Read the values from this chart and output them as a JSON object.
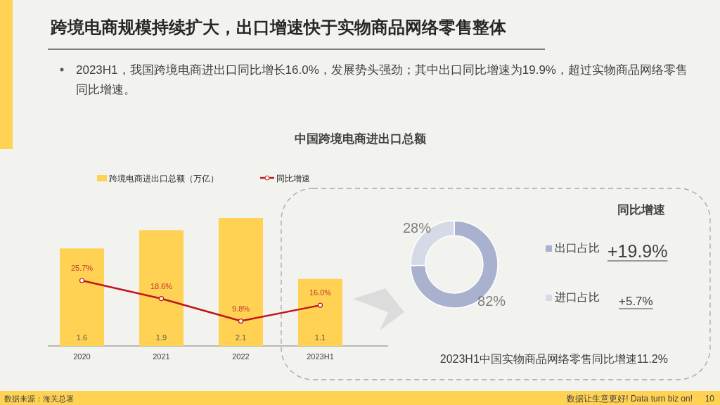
{
  "chart_data": [
    {
      "type": "bar",
      "title": "中国跨境电商进出口总额",
      "categories": [
        "2020",
        "2021",
        "2022",
        "2023H1"
      ],
      "series": [
        {
          "name": "跨境电商进出口总额（万亿）",
          "type": "bar",
          "color": "#ffd254",
          "values": [
            1.6,
            1.9,
            2.1,
            1.1
          ],
          "value_labels": [
            "1.6",
            "1.9",
            "2.1",
            "1.1"
          ]
        },
        {
          "name": "同比增速",
          "type": "line",
          "axis": "y2",
          "color": "#c0161b",
          "marker": "circle",
          "values": [
            25.7,
            18.6,
            9.8,
            16.0
          ],
          "value_labels": [
            "25.7%",
            "18.6%",
            "9.8%",
            "16.0%"
          ]
        }
      ],
      "tick_labels": "x",
      "legend": "top left",
      "annotations": [
        "跨境电商规模持续扩大，出口增速快于实物商品网络零售整体",
        "2023H1，我国跨境电商进出口同比增长16.0%，发展势头强劲；其中出口同比增速为19.9%，超过实物商品网络零售同比增速。",
        "数据来源：海关总署",
        "数据让生意更好! Data turn biz on!",
        "10"
      ]
    },
    {
      "type": "donut",
      "title": "同比增速",
      "categories": [
        "出口占比",
        "进口占比"
      ],
      "values": [
        82,
        28
      ],
      "colors": [
        "#a9b1cf",
        "#d5dae6"
      ],
      "value_labels": [
        "82%",
        "28%"
      ],
      "legend": "right",
      "annotations": [
        "+19.9%",
        "+5.7%",
        "2023H1中国实物商品网络零售同比增速11.2%"
      ]
    }
  ]
}
